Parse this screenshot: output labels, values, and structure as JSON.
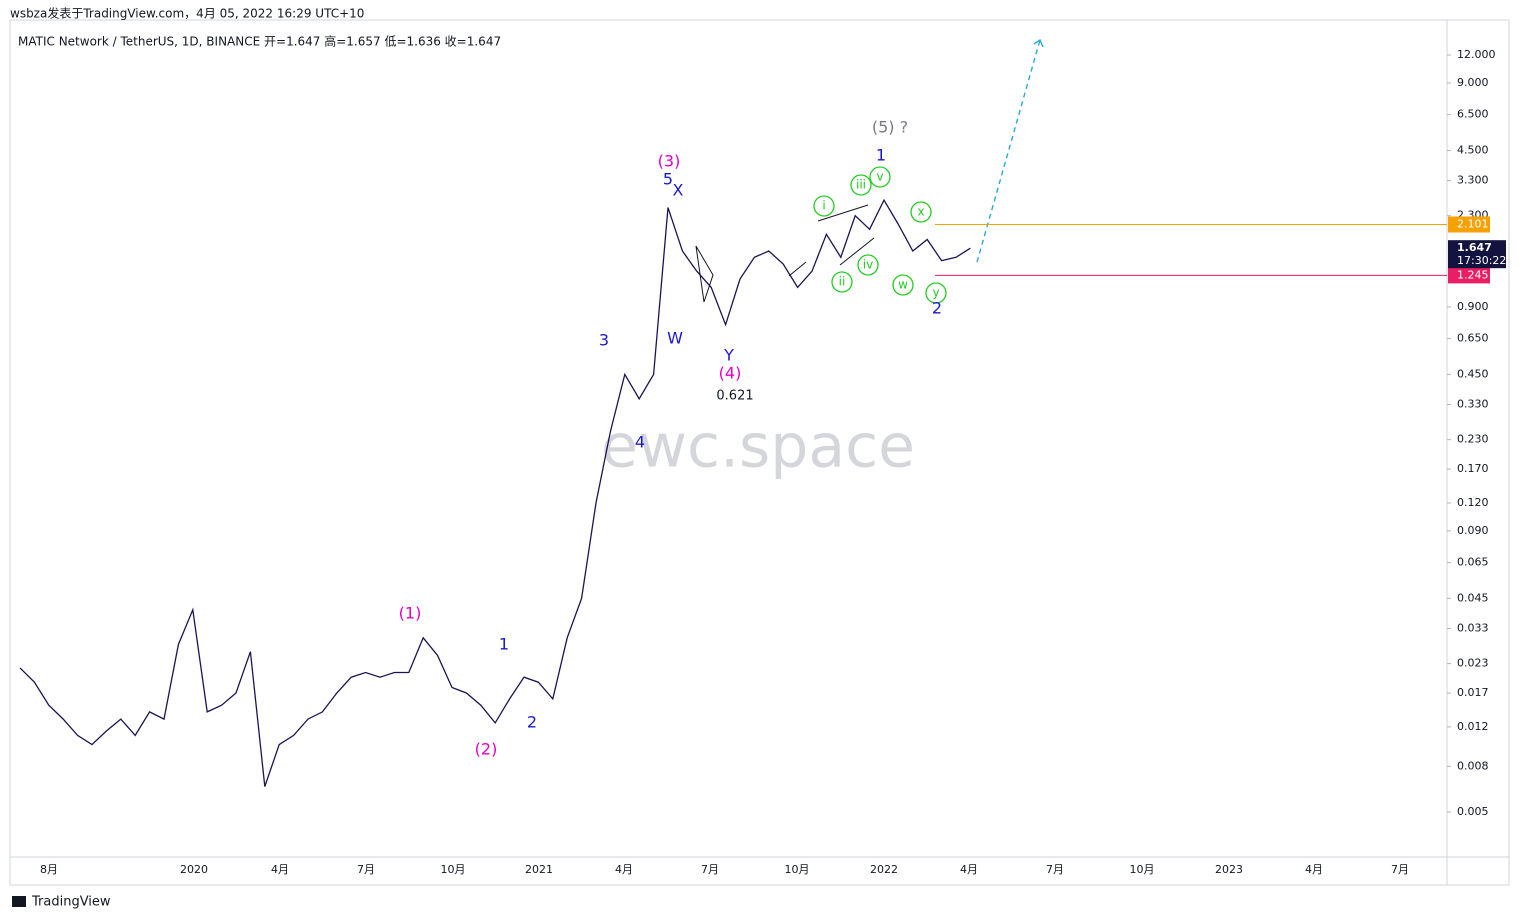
{
  "chart_data": {
    "type": "line",
    "title": "wsbza发表于TradingView.com，4月 05, 2022 16:29 UTC+10",
    "subtitle": "MATIC Network / TetherUS, 1D, BINANCE  开=1.647  高=1.657  低=1.636  收=1.647",
    "watermark": "ewc.space",
    "footer": "TradingView",
    "log_scale": true,
    "color": "#1c1452",
    "values": [
      0.022,
      0.019,
      0.015,
      0.013,
      0.011,
      0.01,
      0.0115,
      0.013,
      0.011,
      0.014,
      0.013,
      0.028,
      0.04,
      0.014,
      0.015,
      0.017,
      0.026,
      0.0065,
      0.01,
      0.011,
      0.013,
      0.014,
      0.017,
      0.02,
      0.021,
      0.02,
      0.021,
      0.021,
      0.03,
      0.025,
      0.018,
      0.017,
      0.015,
      0.0125,
      0.016,
      0.02,
      0.019,
      0.016,
      0.03,
      0.045,
      0.12,
      0.25,
      0.45,
      0.35,
      0.45,
      2.5,
      1.6,
      1.3,
      1.1,
      0.75,
      1.2,
      1.5,
      1.6,
      1.4,
      1.1,
      1.3,
      1.9,
      1.5,
      2.3,
      2.0,
      2.7,
      2.1,
      1.6,
      1.8,
      1.45,
      1.5,
      1.647
    ],
    "xticks": [
      "8月",
      "2020",
      "4月",
      "7月",
      "10月",
      "2021",
      "4月",
      "7月",
      "10月",
      "2022",
      "4月",
      "7月",
      "10月",
      "2023",
      "4月",
      "7月"
    ],
    "ylim": [
      0.00315,
      17.2
    ],
    "yticks": [
      0.005,
      0.008,
      0.012,
      0.017,
      0.023,
      0.033,
      0.045,
      0.065,
      {
        "value": 0.09,
        "label": "0.090"
      },
      {
        "value": 0.12,
        "label": "0.120"
      },
      {
        "value": 0.17,
        "label": "0.170"
      },
      {
        "value": 0.23,
        "label": "0.230"
      },
      {
        "value": 0.33,
        "label": "0.330"
      },
      {
        "value": 0.45,
        "label": "0.450"
      },
      {
        "value": 0.65,
        "label": "0.650"
      },
      {
        "value": 0.9,
        "label": "0.900"
      },
      {
        "value": 2.3,
        "label": "2.300"
      },
      {
        "value": 3.3,
        "label": "3.300"
      },
      {
        "value": 4.5,
        "label": "4.500"
      },
      {
        "value": 6.5,
        "label": "6.500"
      },
      {
        "value": 9,
        "label": "9.000"
      },
      {
        "value": 12,
        "label": "12.000"
      }
    ],
    "hlines": [
      {
        "value": 2.101,
        "color": "#f5a200"
      },
      {
        "value": 1.245,
        "color": "#e91e63"
      }
    ],
    "last": {
      "value": 1.647,
      "countdown": "17:30:22",
      "color": "#131340"
    },
    "annotations": [
      {
        "text": "(5) ?",
        "color": "#787b86"
      },
      {
        "text": "1",
        "color": "#1a1acc"
      },
      {
        "text": "(3)",
        "color": "#e600c8"
      },
      {
        "text": "5",
        "color": "#1a1acc"
      },
      {
        "text": "X",
        "color": "#1a1acc"
      },
      {
        "text": "i",
        "color": "#22cc22"
      },
      {
        "text": "iii",
        "color": "#22cc22"
      },
      {
        "text": "v",
        "color": "#22cc22"
      },
      {
        "text": "x",
        "color": "#22cc22"
      },
      {
        "text": "ii",
        "color": "#22cc22"
      },
      {
        "text": "iv",
        "color": "#22cc22"
      },
      {
        "text": "w",
        "color": "#22cc22"
      },
      {
        "text": "y",
        "color": "#22cc22"
      },
      {
        "text": "2",
        "color": "#1a1acc"
      },
      {
        "text": "W",
        "color": "#1a1acc"
      },
      {
        "text": "Y",
        "color": "#1a1acc"
      },
      {
        "text": "(4)",
        "color": "#e600c8"
      },
      {
        "text": "0.621",
        "color": "#131722"
      },
      {
        "text": "3",
        "color": "#1a1acc"
      },
      {
        "text": "4",
        "color": "#1a1acc"
      },
      {
        "text": "(1)",
        "color": "#e600c8"
      },
      {
        "text": "1",
        "color": "#1a1acc"
      },
      {
        "text": "2",
        "color": "#1a1acc"
      },
      {
        "text": "(2)",
        "color": "#e600c8"
      }
    ]
  }
}
